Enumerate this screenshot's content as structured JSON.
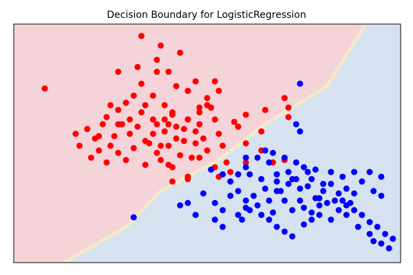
{
  "chart_data": {
    "type": "scatter",
    "title": "Decision Boundary for LogisticRegression",
    "xlabel": "",
    "ylabel": "",
    "xlim": [
      0,
      100
    ],
    "ylim": [
      0,
      100
    ],
    "axis_ticks_visible": false,
    "grid": false,
    "boundary": {
      "points": [
        [
          13,
          0
        ],
        [
          29,
          15
        ],
        [
          38,
          30
        ],
        [
          53,
          43
        ],
        [
          65,
          58
        ],
        [
          81,
          74
        ],
        [
          91,
          100
        ]
      ],
      "upper_region_color": "#f4d3d9",
      "lower_region_color": "#d6e2ef"
    },
    "series": [
      {
        "color": "#ff0000",
        "points": [
          [
            33,
            95
          ],
          [
            38,
            91
          ],
          [
            37,
            85
          ],
          [
            43,
            88
          ],
          [
            37,
            80
          ],
          [
            32,
            82
          ],
          [
            27,
            80
          ],
          [
            33,
            75
          ],
          [
            40,
            80
          ],
          [
            42,
            74
          ],
          [
            45,
            72
          ],
          [
            47,
            76
          ],
          [
            50,
            69
          ],
          [
            52,
            76
          ],
          [
            53,
            72
          ],
          [
            51,
            65
          ],
          [
            48,
            63
          ],
          [
            45,
            60
          ],
          [
            41,
            63
          ],
          [
            39,
            66
          ],
          [
            36,
            70
          ],
          [
            34,
            66
          ],
          [
            31,
            70
          ],
          [
            29,
            67
          ],
          [
            27,
            64
          ],
          [
            25,
            66
          ],
          [
            24,
            61
          ],
          [
            28,
            58
          ],
          [
            30,
            54
          ],
          [
            32,
            57
          ],
          [
            34,
            51
          ],
          [
            31,
            48
          ],
          [
            27,
            46
          ],
          [
            25,
            49
          ],
          [
            22,
            53
          ],
          [
            19,
            56
          ],
          [
            22,
            47
          ],
          [
            29,
            43
          ],
          [
            34,
            41
          ],
          [
            37,
            46
          ],
          [
            38,
            49
          ],
          [
            36,
            54
          ],
          [
            37,
            58
          ],
          [
            39,
            55
          ],
          [
            42,
            52
          ],
          [
            44,
            56
          ],
          [
            47,
            55
          ],
          [
            49,
            52
          ],
          [
            50,
            47
          ],
          [
            46,
            44
          ],
          [
            43,
            45
          ],
          [
            38,
            43
          ],
          [
            41,
            40
          ],
          [
            45,
            36
          ],
          [
            40,
            41
          ],
          [
            41,
            34
          ],
          [
            40,
            58
          ],
          [
            48,
            58
          ],
          [
            53,
            54
          ],
          [
            58,
            57
          ],
          [
            60,
            50
          ],
          [
            64,
            47
          ],
          [
            60,
            42
          ],
          [
            55,
            42
          ],
          [
            52,
            40
          ],
          [
            48,
            44
          ],
          [
            53,
            36
          ],
          [
            45,
            35
          ],
          [
            40,
            49
          ],
          [
            35,
            50
          ],
          [
            30,
            60
          ],
          [
            26,
            53
          ],
          [
            23,
            58
          ],
          [
            21,
            52
          ],
          [
            17,
            49
          ],
          [
            20,
            44
          ],
          [
            16,
            54
          ],
          [
            8,
            73
          ],
          [
            27,
            58
          ],
          [
            36,
            60
          ],
          [
            48,
            65
          ],
          [
            52,
            60
          ],
          [
            44,
            51
          ],
          [
            57,
            59
          ],
          [
            60,
            62
          ],
          [
            65,
            64
          ],
          [
            70,
            69
          ],
          [
            71,
            65
          ],
          [
            64,
            55
          ],
          [
            67,
            42
          ],
          [
            70,
            43
          ],
          [
            71,
            61
          ],
          [
            50,
            66
          ],
          [
            39,
            60
          ],
          [
            47,
            50
          ],
          [
            42,
            57
          ],
          [
            54,
            49
          ],
          [
            45,
            60
          ],
          [
            33,
            63
          ],
          [
            41,
            62
          ],
          [
            56,
            38
          ],
          [
            24,
            42
          ]
        ]
      },
      {
        "color": "#0000ff",
        "points": [
          [
            74,
            75
          ],
          [
            74,
            55
          ],
          [
            73,
            58
          ],
          [
            65,
            47
          ],
          [
            66,
            42
          ],
          [
            54,
            37
          ],
          [
            68,
            37
          ],
          [
            72,
            35
          ],
          [
            74,
            31
          ],
          [
            77,
            35
          ],
          [
            80,
            30
          ],
          [
            82,
            33
          ],
          [
            84,
            29
          ],
          [
            86,
            31
          ],
          [
            88,
            29
          ],
          [
            85,
            26
          ],
          [
            81,
            25
          ],
          [
            78,
            27
          ],
          [
            75,
            23
          ],
          [
            72,
            22
          ],
          [
            70,
            26
          ],
          [
            68,
            30
          ],
          [
            65,
            31
          ],
          [
            62,
            28
          ],
          [
            60,
            26
          ],
          [
            61,
            22
          ],
          [
            64,
            20
          ],
          [
            66,
            18
          ],
          [
            68,
            15
          ],
          [
            70,
            13
          ],
          [
            72,
            11
          ],
          [
            75,
            16
          ],
          [
            77,
            18
          ],
          [
            79,
            20
          ],
          [
            82,
            18
          ],
          [
            84,
            22
          ],
          [
            86,
            24
          ],
          [
            88,
            22
          ],
          [
            90,
            20
          ],
          [
            92,
            17
          ],
          [
            94,
            15
          ],
          [
            96,
            12
          ],
          [
            98,
            10
          ],
          [
            90,
            34
          ],
          [
            93,
            30
          ],
          [
            95,
            28
          ],
          [
            95,
            36
          ],
          [
            92,
            38
          ],
          [
            88,
            38
          ],
          [
            85,
            36
          ],
          [
            82,
            38
          ],
          [
            78,
            39
          ],
          [
            75,
            40
          ],
          [
            73,
            42
          ],
          [
            70,
            44
          ],
          [
            67,
            46
          ],
          [
            63,
            44
          ],
          [
            60,
            40
          ],
          [
            58,
            37
          ],
          [
            56,
            34
          ],
          [
            52,
            25
          ],
          [
            49,
            29
          ],
          [
            45,
            25
          ],
          [
            43,
            24
          ],
          [
            47,
            20
          ],
          [
            52,
            18
          ],
          [
            54,
            15
          ],
          [
            58,
            20
          ],
          [
            60,
            23
          ],
          [
            63,
            24
          ],
          [
            66,
            26
          ],
          [
            69,
            30
          ],
          [
            71,
            33
          ],
          [
            73,
            35
          ],
          [
            76,
            32
          ],
          [
            79,
            27
          ],
          [
            83,
            26
          ],
          [
            86,
            20
          ],
          [
            89,
            15
          ],
          [
            92,
            12
          ],
          [
            95,
            8
          ],
          [
            97,
            6
          ],
          [
            93,
            9
          ],
          [
            87,
            25
          ],
          [
            80,
            33
          ],
          [
            76,
            38
          ],
          [
            71,
            38
          ],
          [
            68,
            34
          ],
          [
            64,
            35
          ],
          [
            61,
            37
          ],
          [
            58,
            30
          ],
          [
            56,
            28
          ],
          [
            54,
            22
          ],
          [
            59,
            18
          ],
          [
            67,
            21
          ],
          [
            74,
            26
          ],
          [
            77,
            21
          ],
          [
            79,
            24
          ],
          [
            31,
            19
          ],
          [
            51,
            39
          ],
          [
            60,
            44
          ]
        ]
      }
    ]
  }
}
